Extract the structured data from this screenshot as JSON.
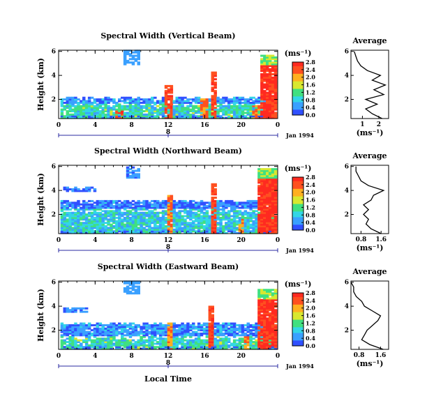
{
  "chart_data": [
    {
      "type": "heatmap",
      "title": "Spectral Width (Vertical Beam)",
      "ylabel": "Height (km)",
      "xticks": [
        "0",
        "4",
        "8",
        "12",
        "16",
        "20",
        "0"
      ],
      "yticks": [
        "2",
        "4",
        "6"
      ],
      "xlim": [
        0,
        24
      ],
      "ylim": [
        0.4,
        6.1
      ],
      "date_marker": "8",
      "date_label": "Jan 1994",
      "colorbar": {
        "unit": "(ms⁻¹)",
        "ticks": [
          "0.0",
          "0.4",
          "0.8",
          "1.2",
          "1.6",
          "2.0",
          "2.4",
          "2.8"
        ]
      },
      "layers": [
        {
          "t0": 0.2,
          "t1": 23.6,
          "h0": 0.4,
          "h1": 1.6,
          "level": 0.9
        },
        {
          "t0": 0.2,
          "t1": 23.6,
          "h0": 1.6,
          "h1": 2.15,
          "level": 0.3
        }
      ],
      "plumes": [
        {
          "t": 6.5,
          "h1": 1.0,
          "level": 2.8
        },
        {
          "t": 11.9,
          "h1": 3.1,
          "level": 2.8
        },
        {
          "t": 15.8,
          "h1": 2.0,
          "level": 2.6
        },
        {
          "t": 16.8,
          "h1": 4.3,
          "level": 2.8
        },
        {
          "t": 21.5,
          "h1": 1.5,
          "level": 2.6
        }
      ],
      "patches": [
        {
          "t0": 7.0,
          "t1": 8.6,
          "h0": 4.8,
          "h1": 6.1,
          "level": 0.5
        }
      ],
      "storm": {
        "t0": 22.0,
        "t1": 23.9,
        "h0": 0.4,
        "h1": 5.6,
        "level": 2.8
      },
      "average": {
        "title": "Average",
        "xlabel": "(ms⁻¹)",
        "xticks": [
          "1",
          "2"
        ],
        "xlim": [
          0.3,
          2.6
        ],
        "profile_h": [
          0.4,
          0.8,
          1.2,
          1.6,
          2.0,
          2.4,
          2.8,
          3.2,
          3.6,
          4.0,
          4.4,
          4.8,
          5.2,
          5.6,
          6.0
        ],
        "profile_v": [
          2.2,
          1.6,
          1.2,
          1.9,
          1.2,
          2.3,
          1.7,
          2.4,
          1.6,
          2.1,
          1.3,
          0.9,
          0.7,
          0.6,
          0.5
        ]
      }
    },
    {
      "type": "heatmap",
      "title": "Spectral Width (Northward Beam)",
      "ylabel": "Height (km)",
      "xticks": [
        "0",
        "4",
        "8",
        "12",
        "16",
        "20",
        "0"
      ],
      "yticks": [
        "2",
        "4",
        "6"
      ],
      "xlim": [
        0,
        24
      ],
      "ylim": [
        0.4,
        6.1
      ],
      "date_marker": "8",
      "date_label": "Jan 1994",
      "colorbar": {
        "unit": "(ms⁻¹)",
        "ticks": [
          "0.0",
          "0.4",
          "0.8",
          "1.2",
          "1.6",
          "2.0",
          "2.4",
          "2.8"
        ]
      },
      "layers": [
        {
          "t0": 0.2,
          "t1": 23.6,
          "h0": 0.4,
          "h1": 2.4,
          "level": 0.7
        },
        {
          "t0": 0.2,
          "t1": 23.6,
          "h0": 2.4,
          "h1": 3.2,
          "level": 0.2
        }
      ],
      "plumes": [
        {
          "t": 12.0,
          "h1": 3.6,
          "level": 2.6
        },
        {
          "t": 16.8,
          "h1": 4.5,
          "level": 2.8
        },
        {
          "t": 19.8,
          "h1": 1.6,
          "level": 2.4
        }
      ],
      "patches": [
        {
          "t0": 7.2,
          "t1": 8.7,
          "h0": 5.0,
          "h1": 6.0,
          "level": 0.4
        },
        {
          "t0": 0.4,
          "t1": 4.0,
          "h0": 3.8,
          "h1": 4.3,
          "level": 0.3
        }
      ],
      "storm": {
        "t0": 21.8,
        "t1": 23.9,
        "h0": 0.4,
        "h1": 5.8,
        "level": 2.8
      },
      "average": {
        "title": "Average",
        "xlabel": "(ms⁻¹)",
        "xticks": [
          "0.8",
          "1.6"
        ],
        "xlim": [
          0.4,
          1.9
        ],
        "profile_h": [
          0.4,
          0.8,
          1.2,
          1.6,
          2.0,
          2.4,
          2.8,
          3.2,
          3.6,
          4.0,
          4.4,
          4.8,
          5.2,
          5.6,
          6.0
        ],
        "profile_v": [
          1.6,
          1.2,
          1.0,
          1.1,
          0.9,
          1.1,
          0.9,
          1.2,
          1.3,
          1.7,
          1.1,
          0.8,
          0.7,
          0.6,
          0.6
        ]
      }
    },
    {
      "type": "heatmap",
      "title": "Spectral Width (Eastward Beam)",
      "ylabel": "Height (km)",
      "xticks": [
        "0",
        "4",
        "8",
        "12",
        "16",
        "20",
        "0"
      ],
      "yticks": [
        "2",
        "4",
        "6"
      ],
      "xlim": [
        0,
        24
      ],
      "ylim": [
        0.4,
        6.1
      ],
      "date_marker": "8",
      "date_label": "Jan 1994",
      "xlabel": "Local Time",
      "colorbar": {
        "unit": "(ms⁻¹)",
        "ticks": [
          "0.0",
          "0.4",
          "0.8",
          "1.2",
          "1.6",
          "2.0",
          "2.4",
          "2.8"
        ]
      },
      "layers": [
        {
          "t0": 0.2,
          "t1": 23.6,
          "h0": 0.4,
          "h1": 1.4,
          "level": 0.9
        },
        {
          "t0": 0.2,
          "t1": 23.6,
          "h0": 1.4,
          "h1": 2.6,
          "level": 0.3
        }
      ],
      "plumes": [
        {
          "t": 12.0,
          "h1": 2.6,
          "level": 2.4
        },
        {
          "t": 16.6,
          "h1": 4.0,
          "level": 2.8
        },
        {
          "t": 20.5,
          "h1": 1.4,
          "level": 2.6
        }
      ],
      "patches": [
        {
          "t0": 7.0,
          "t1": 8.6,
          "h0": 4.9,
          "h1": 6.0,
          "level": 0.5
        },
        {
          "t0": 0.4,
          "t1": 3.0,
          "h0": 3.4,
          "h1": 3.8,
          "level": 0.3
        }
      ],
      "storm": {
        "t0": 21.8,
        "t1": 23.9,
        "h0": 0.4,
        "h1": 5.4,
        "level": 2.8
      },
      "average": {
        "title": "Average",
        "xlabel": "(ms⁻¹)",
        "xticks": [
          "0.8",
          "1.6"
        ],
        "xlim": [
          0.5,
          1.9
        ],
        "profile_h": [
          0.4,
          0.8,
          1.2,
          1.6,
          2.0,
          2.4,
          2.8,
          3.2,
          3.6,
          4.0,
          4.4,
          4.8,
          5.2,
          5.6,
          6.0
        ],
        "profile_v": [
          1.7,
          1.2,
          0.9,
          1.0,
          1.1,
          1.3,
          1.5,
          1.6,
          1.3,
          1.0,
          0.9,
          0.7,
          0.6,
          0.6,
          0.5
        ]
      }
    }
  ]
}
